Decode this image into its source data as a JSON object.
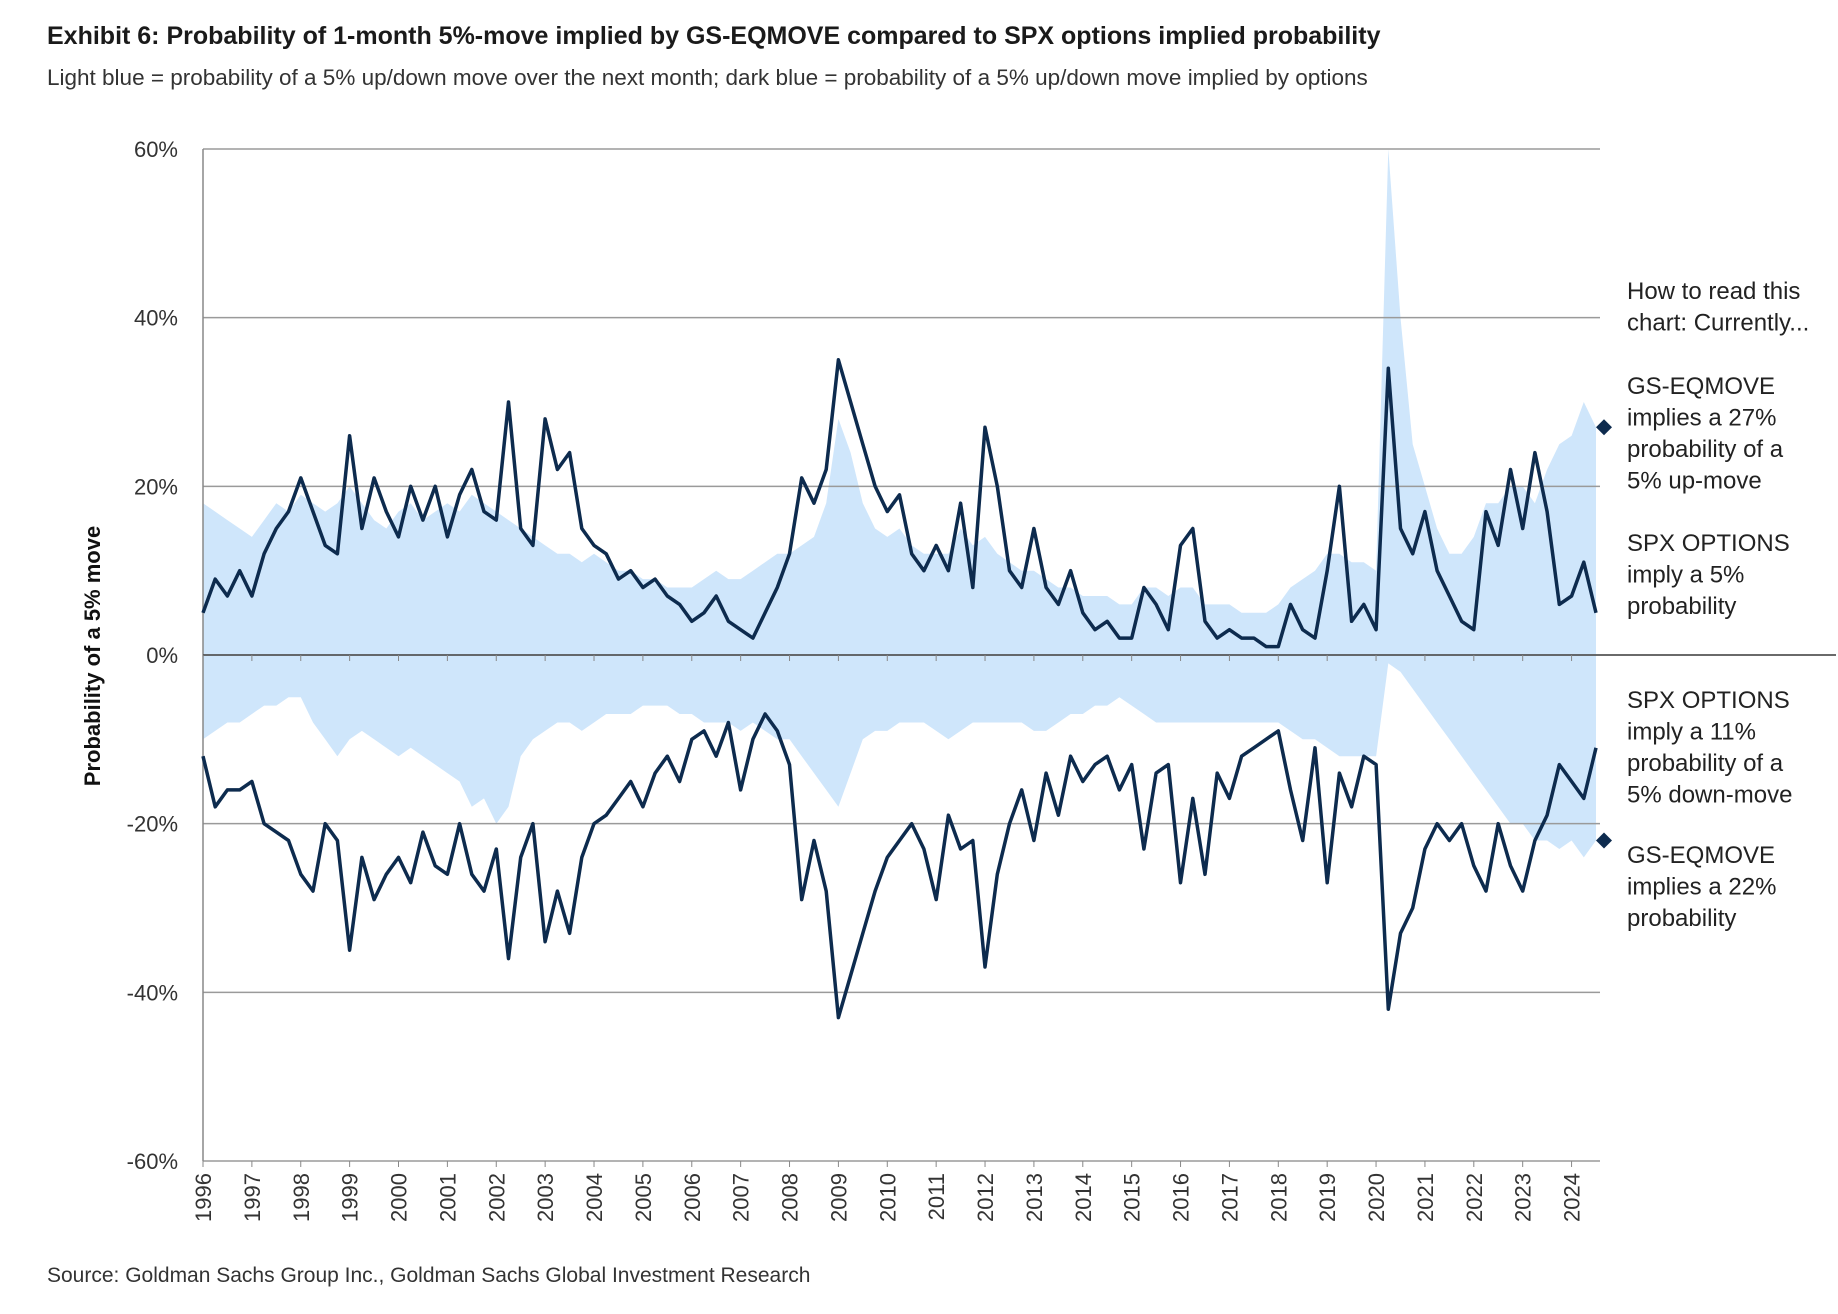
{
  "title": "Exhibit 6: Probability of 1-month 5%-move implied by GS-EQMOVE compared to SPX options implied probability",
  "subtitle": "Light blue = probability of a 5% up/down move over the next month; dark blue = probability of a 5% up/down move implied by options",
  "source": "Source: Goldman Sachs Group Inc., Goldman Sachs Global Investment Research",
  "colors": {
    "gs_eqmove": "#cfe6fb",
    "spx_options": "#0d2b4e",
    "grid": "#9a9a9a"
  },
  "annotations": {
    "intro": [
      "How to read this",
      "chart: Currently..."
    ],
    "gs_up": [
      "GS-EQMOVE",
      "implies a 27%",
      "probability of a",
      "5% up-move"
    ],
    "spx_up": [
      "SPX OPTIONS",
      "imply a 5%",
      "probability"
    ],
    "spx_down": [
      "SPX OPTIONS",
      "imply a 11%",
      "probability of a",
      "5% down-move"
    ],
    "gs_down": [
      "GS-EQMOVE",
      "implies a 22%",
      "probability"
    ]
  },
  "chart_data": {
    "type": "area+line",
    "title": "Exhibit 6: Probability of 1-month 5%-move implied by GS-EQMOVE compared to SPX options implied probability",
    "ylabel": "Probability of a 5% move",
    "xlabel": "",
    "ylim": [
      -60,
      60
    ],
    "yticks": [
      "60%",
      "40%",
      "20%",
      "0%",
      "-20%",
      "-40%",
      "-60%"
    ],
    "ytick_values": [
      60,
      40,
      20,
      0,
      -20,
      -40,
      -60
    ],
    "xticks": [
      "1996",
      "1997",
      "1998",
      "1999",
      "2000",
      "2001",
      "2002",
      "2003",
      "2004",
      "2005",
      "2006",
      "2007",
      "2008",
      "2009",
      "2010",
      "2011",
      "2012",
      "2013",
      "2014",
      "2015",
      "2016",
      "2017",
      "2018",
      "2019",
      "2020",
      "2021",
      "2022",
      "2023",
      "2024"
    ],
    "xlim": [
      1996,
      2024.5
    ],
    "x_start": 1996,
    "frequency": "quarterly",
    "grid": true,
    "series": [
      {
        "name": "GS-EQMOVE up",
        "kind": "area",
        "values": [
          18,
          17,
          16,
          15,
          14,
          16,
          18,
          17,
          19,
          18,
          17,
          18,
          20,
          18,
          16,
          15,
          17,
          18,
          16,
          17,
          18,
          17,
          19,
          18,
          17,
          16,
          15,
          14,
          13,
          12,
          12,
          11,
          12,
          11,
          10,
          10,
          9,
          9,
          8,
          8,
          8,
          9,
          10,
          9,
          9,
          10,
          11,
          12,
          12,
          13,
          14,
          18,
          28,
          24,
          18,
          15,
          14,
          15,
          13,
          12,
          12,
          12,
          15,
          13,
          14,
          12,
          11,
          10,
          10,
          9,
          8,
          8,
          7,
          7,
          7,
          6,
          6,
          8,
          8,
          7,
          8,
          8,
          6,
          6,
          6,
          5,
          5,
          5,
          6,
          8,
          9,
          10,
          12,
          12,
          11,
          11,
          10,
          60,
          40,
          25,
          20,
          15,
          12,
          12,
          14,
          18,
          18,
          20,
          20,
          18,
          22,
          25,
          26,
          30,
          27
        ]
      },
      {
        "name": "GS-EQMOVE down",
        "kind": "area",
        "values": [
          -10,
          -9,
          -8,
          -8,
          -7,
          -6,
          -6,
          -5,
          -5,
          -8,
          -10,
          -12,
          -10,
          -9,
          -10,
          -11,
          -12,
          -11,
          -12,
          -13,
          -14,
          -15,
          -18,
          -17,
          -20,
          -18,
          -12,
          -10,
          -9,
          -8,
          -8,
          -9,
          -8,
          -7,
          -7,
          -7,
          -6,
          -6,
          -6,
          -7,
          -7,
          -8,
          -8,
          -8,
          -9,
          -8,
          -9,
          -10,
          -10,
          -12,
          -14,
          -16,
          -18,
          -14,
          -10,
          -9,
          -9,
          -8,
          -8,
          -8,
          -9,
          -10,
          -9,
          -8,
          -8,
          -8,
          -8,
          -8,
          -9,
          -9,
          -8,
          -7,
          -7,
          -6,
          -6,
          -5,
          -6,
          -7,
          -8,
          -8,
          -8,
          -8,
          -8,
          -8,
          -8,
          -8,
          -8,
          -8,
          -8,
          -9,
          -10,
          -10,
          -11,
          -12,
          -12,
          -12,
          -12,
          -1,
          -2,
          -4,
          -6,
          -8,
          -10,
          -12,
          -14,
          -16,
          -18,
          -20,
          -20,
          -22,
          -22,
          -23,
          -22,
          -24,
          -22
        ]
      },
      {
        "name": "SPX options up",
        "kind": "line",
        "values": [
          5,
          9,
          7,
          10,
          7,
          12,
          15,
          17,
          21,
          17,
          13,
          12,
          26,
          15,
          21,
          17,
          14,
          20,
          16,
          20,
          14,
          19,
          22,
          17,
          16,
          30,
          15,
          13,
          28,
          22,
          24,
          15,
          13,
          12,
          9,
          10,
          8,
          9,
          7,
          6,
          4,
          5,
          7,
          4,
          3,
          2,
          5,
          8,
          12,
          21,
          18,
          22,
          35,
          30,
          25,
          20,
          17,
          19,
          12,
          10,
          13,
          10,
          18,
          8,
          27,
          20,
          10,
          8,
          15,
          8,
          6,
          10,
          5,
          3,
          4,
          2,
          2,
          8,
          6,
          3,
          13,
          15,
          4,
          2,
          3,
          2,
          2,
          1,
          1,
          6,
          3,
          2,
          10,
          20,
          4,
          6,
          3,
          34,
          15,
          12,
          17,
          10,
          7,
          4,
          3,
          17,
          13,
          22,
          15,
          24,
          17,
          6,
          7,
          11,
          5
        ]
      },
      {
        "name": "SPX options down",
        "kind": "line",
        "values": [
          -12,
          -18,
          -16,
          -16,
          -15,
          -20,
          -21,
          -22,
          -26,
          -28,
          -20,
          -22,
          -35,
          -24,
          -29,
          -26,
          -24,
          -27,
          -21,
          -25,
          -26,
          -20,
          -26,
          -28,
          -23,
          -36,
          -24,
          -20,
          -34,
          -28,
          -33,
          -24,
          -20,
          -19,
          -17,
          -15,
          -18,
          -14,
          -12,
          -15,
          -10,
          -9,
          -12,
          -8,
          -16,
          -10,
          -7,
          -9,
          -13,
          -29,
          -22,
          -28,
          -43,
          -38,
          -33,
          -28,
          -24,
          -22,
          -20,
          -23,
          -29,
          -19,
          -23,
          -22,
          -37,
          -26,
          -20,
          -16,
          -22,
          -14,
          -19,
          -12,
          -15,
          -13,
          -12,
          -16,
          -13,
          -23,
          -14,
          -13,
          -27,
          -17,
          -26,
          -14,
          -17,
          -12,
          -11,
          -10,
          -9,
          -16,
          -22,
          -11,
          -27,
          -14,
          -18,
          -12,
          -13,
          -42,
          -33,
          -30,
          -23,
          -20,
          -22,
          -20,
          -25,
          -28,
          -20,
          -25,
          -28,
          -22,
          -19,
          -13,
          -15,
          -17,
          -11
        ]
      }
    ],
    "current_markers": [
      {
        "label": "GS-EQMOVE up",
        "value": 27
      },
      {
        "label": "GS-EQMOVE down",
        "value": -22
      }
    ]
  }
}
